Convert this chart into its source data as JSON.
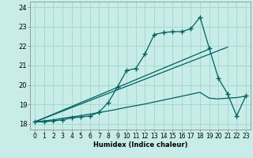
{
  "xlabel": "Humidex (Indice chaleur)",
  "bg_color": "#c8ede8",
  "grid_color": "#a8d8d0",
  "line_color": "#006060",
  "xlim": [
    -0.5,
    23.5
  ],
  "ylim": [
    17.7,
    24.3
  ],
  "xticks": [
    0,
    1,
    2,
    3,
    4,
    5,
    6,
    7,
    8,
    9,
    10,
    11,
    12,
    13,
    14,
    15,
    16,
    17,
    18,
    19,
    20,
    21,
    22,
    23
  ],
  "yticks": [
    18,
    19,
    20,
    21,
    22,
    23,
    24
  ],
  "jagged_x": [
    0,
    1,
    2,
    3,
    4,
    5,
    6,
    7,
    8,
    9,
    10,
    11,
    12,
    13,
    14,
    15,
    16,
    17,
    18,
    19,
    20,
    21,
    22,
    23
  ],
  "jagged_y": [
    18.1,
    18.1,
    18.15,
    18.2,
    18.3,
    18.35,
    18.4,
    18.6,
    19.1,
    19.9,
    20.75,
    20.85,
    21.6,
    22.6,
    22.7,
    22.75,
    22.75,
    22.9,
    23.5,
    21.9,
    20.35,
    19.55,
    18.4,
    19.45
  ],
  "smooth_x": [
    0,
    1,
    2,
    3,
    4,
    5,
    6,
    7,
    8,
    9,
    10,
    11,
    12,
    13,
    14,
    15,
    16,
    17,
    18,
    19,
    20,
    21,
    22,
    23
  ],
  "smooth_y": [
    18.1,
    18.15,
    18.2,
    18.28,
    18.35,
    18.42,
    18.5,
    18.58,
    18.66,
    18.75,
    18.85,
    18.93,
    19.02,
    19.12,
    19.22,
    19.32,
    19.42,
    19.52,
    19.62,
    19.32,
    19.28,
    19.32,
    19.35,
    19.42
  ],
  "trend1_x": [
    0,
    19
  ],
  "trend1_y": [
    18.1,
    21.85
  ],
  "trend2_x": [
    0,
    21
  ],
  "trend2_y": [
    18.1,
    21.95
  ],
  "xlabel_fontsize": 6,
  "tick_fontsize": 5.5,
  "ytick_fontsize": 6
}
